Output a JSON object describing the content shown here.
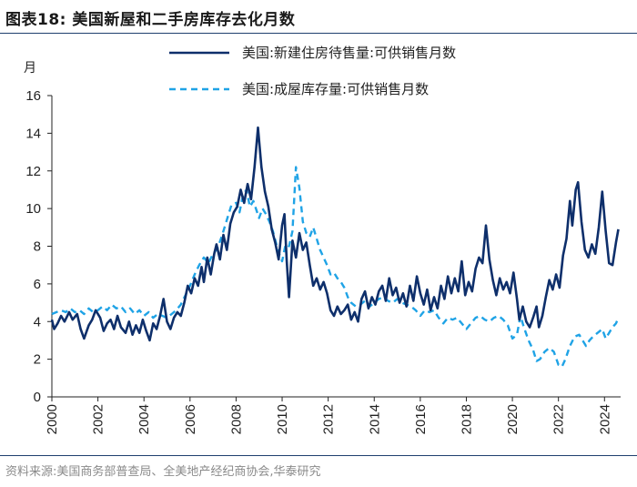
{
  "title": "图表18:   美国新屋和二手房库存去化月数",
  "source": "资料来源:美国商务部普查局、全美地产经纪商协会,华泰研究",
  "chart_data": {
    "type": "line",
    "ylabel": "月",
    "xlabel": "",
    "ylim": [
      0,
      16
    ],
    "xlim": [
      2000,
      2024.7
    ],
    "y_ticks": [
      "0",
      "2",
      "4",
      "6",
      "8",
      "10",
      "12",
      "14",
      "16"
    ],
    "x_ticks": [
      "2000",
      "2002",
      "2004",
      "2006",
      "2008",
      "2010",
      "2012",
      "2014",
      "2016",
      "2018",
      "2020",
      "2022",
      "2024"
    ],
    "series": [
      {
        "name": "美国:新建住房待售量:可供销售月数",
        "color": "#0e2f6b",
        "style": "solid",
        "points": [
          [
            2000,
            4.1
          ],
          [
            2000.1,
            3.6
          ],
          [
            2000.25,
            3.9
          ],
          [
            2000.4,
            4.3
          ],
          [
            2000.55,
            4.0
          ],
          [
            2000.75,
            4.5
          ],
          [
            2000.9,
            4.1
          ],
          [
            2001.1,
            4.4
          ],
          [
            2001.25,
            3.6
          ],
          [
            2001.4,
            3.1
          ],
          [
            2001.6,
            3.8
          ],
          [
            2001.75,
            4.1
          ],
          [
            2001.9,
            4.6
          ],
          [
            2002.1,
            4.2
          ],
          [
            2002.25,
            3.5
          ],
          [
            2002.4,
            3.9
          ],
          [
            2002.55,
            4.1
          ],
          [
            2002.7,
            3.6
          ],
          [
            2002.85,
            4.3
          ],
          [
            2003,
            3.7
          ],
          [
            2003.2,
            3.4
          ],
          [
            2003.35,
            4.0
          ],
          [
            2003.5,
            3.3
          ],
          [
            2003.65,
            3.8
          ],
          [
            2003.8,
            3.4
          ],
          [
            2003.95,
            4.1
          ],
          [
            2004.1,
            3.5
          ],
          [
            2004.25,
            3.0
          ],
          [
            2004.4,
            3.9
          ],
          [
            2004.55,
            3.6
          ],
          [
            2004.7,
            4.3
          ],
          [
            2004.85,
            5.2
          ],
          [
            2005,
            4.0
          ],
          [
            2005.15,
            3.6
          ],
          [
            2005.3,
            4.2
          ],
          [
            2005.45,
            4.5
          ],
          [
            2005.6,
            4.3
          ],
          [
            2005.75,
            5.0
          ],
          [
            2005.9,
            5.9
          ],
          [
            2006.05,
            5.5
          ],
          [
            2006.2,
            6.3
          ],
          [
            2006.35,
            5.9
          ],
          [
            2006.5,
            6.9
          ],
          [
            2006.6,
            6.1
          ],
          [
            2006.75,
            7.4
          ],
          [
            2006.9,
            6.5
          ],
          [
            2007.05,
            7.6
          ],
          [
            2007.15,
            8.1
          ],
          [
            2007.3,
            7.3
          ],
          [
            2007.45,
            8.6
          ],
          [
            2007.6,
            7.8
          ],
          [
            2007.75,
            9.2
          ],
          [
            2007.9,
            9.8
          ],
          [
            2008.05,
            10.1
          ],
          [
            2008.2,
            11.0
          ],
          [
            2008.35,
            10.3
          ],
          [
            2008.5,
            11.3
          ],
          [
            2008.65,
            10.5
          ],
          [
            2008.8,
            12.2
          ],
          [
            2008.95,
            14.3
          ],
          [
            2009.1,
            12.2
          ],
          [
            2009.25,
            10.9
          ],
          [
            2009.4,
            10.1
          ],
          [
            2009.55,
            8.9
          ],
          [
            2009.7,
            8.2
          ],
          [
            2009.85,
            7.3
          ],
          [
            2010,
            9.1
          ],
          [
            2010.1,
            9.7
          ],
          [
            2010.2,
            7.2
          ],
          [
            2010.3,
            5.3
          ],
          [
            2010.45,
            8.3
          ],
          [
            2010.6,
            7.4
          ],
          [
            2010.75,
            8.7
          ],
          [
            2010.9,
            7.8
          ],
          [
            2011.05,
            8.2
          ],
          [
            2011.2,
            7.0
          ],
          [
            2011.35,
            5.9
          ],
          [
            2011.5,
            6.3
          ],
          [
            2011.65,
            5.7
          ],
          [
            2011.8,
            6.1
          ],
          [
            2011.95,
            5.5
          ],
          [
            2012.1,
            4.6
          ],
          [
            2012.25,
            4.3
          ],
          [
            2012.4,
            4.8
          ],
          [
            2012.55,
            4.4
          ],
          [
            2012.7,
            4.6
          ],
          [
            2012.85,
            4.9
          ],
          [
            2013,
            4.1
          ],
          [
            2013.15,
            4.5
          ],
          [
            2013.3,
            4.0
          ],
          [
            2013.45,
            5.2
          ],
          [
            2013.6,
            5.6
          ],
          [
            2013.75,
            4.7
          ],
          [
            2013.9,
            5.3
          ],
          [
            2014.05,
            4.9
          ],
          [
            2014.2,
            5.6
          ],
          [
            2014.35,
            5.9
          ],
          [
            2014.5,
            5.1
          ],
          [
            2014.65,
            6.3
          ],
          [
            2014.8,
            5.4
          ],
          [
            2014.95,
            5.8
          ],
          [
            2015.1,
            5.0
          ],
          [
            2015.25,
            5.5
          ],
          [
            2015.4,
            4.8
          ],
          [
            2015.55,
            5.9
          ],
          [
            2015.7,
            5.1
          ],
          [
            2015.85,
            6.4
          ],
          [
            2016,
            5.5
          ],
          [
            2016.15,
            4.9
          ],
          [
            2016.3,
            5.7
          ],
          [
            2016.45,
            4.6
          ],
          [
            2016.6,
            5.3
          ],
          [
            2016.75,
            4.7
          ],
          [
            2016.9,
            5.9
          ],
          [
            2017.05,
            5.2
          ],
          [
            2017.2,
            6.4
          ],
          [
            2017.35,
            5.5
          ],
          [
            2017.5,
            6.3
          ],
          [
            2017.65,
            5.6
          ],
          [
            2017.8,
            7.2
          ],
          [
            2017.95,
            5.4
          ],
          [
            2018.1,
            6.1
          ],
          [
            2018.25,
            5.6
          ],
          [
            2018.4,
            6.8
          ],
          [
            2018.55,
            7.4
          ],
          [
            2018.7,
            7.1
          ],
          [
            2018.85,
            9.1
          ],
          [
            2019,
            7.3
          ],
          [
            2019.15,
            6.2
          ],
          [
            2019.3,
            5.4
          ],
          [
            2019.45,
            6.3
          ],
          [
            2019.6,
            5.7
          ],
          [
            2019.75,
            6.1
          ],
          [
            2019.9,
            5.5
          ],
          [
            2020.05,
            6.6
          ],
          [
            2020.2,
            5.2
          ],
          [
            2020.3,
            4.1
          ],
          [
            2020.45,
            4.8
          ],
          [
            2020.6,
            4.0
          ],
          [
            2020.75,
            3.7
          ],
          [
            2020.9,
            4.2
          ],
          [
            2021.05,
            4.8
          ],
          [
            2021.15,
            3.7
          ],
          [
            2021.3,
            4.3
          ],
          [
            2021.45,
            5.3
          ],
          [
            2021.6,
            6.2
          ],
          [
            2021.75,
            5.7
          ],
          [
            2021.9,
            6.5
          ],
          [
            2022.05,
            5.8
          ],
          [
            2022.2,
            7.5
          ],
          [
            2022.35,
            8.4
          ],
          [
            2022.5,
            10.4
          ],
          [
            2022.6,
            9.1
          ],
          [
            2022.75,
            11.0
          ],
          [
            2022.85,
            11.4
          ],
          [
            2023,
            9.3
          ],
          [
            2023.15,
            7.8
          ],
          [
            2023.3,
            7.4
          ],
          [
            2023.45,
            8.1
          ],
          [
            2023.6,
            7.6
          ],
          [
            2023.75,
            9.0
          ],
          [
            2023.9,
            10.9
          ],
          [
            2024.05,
            8.8
          ],
          [
            2024.2,
            7.1
          ],
          [
            2024.35,
            7.0
          ],
          [
            2024.5,
            8.2
          ],
          [
            2024.6,
            8.9
          ]
        ]
      },
      {
        "name": "美国:成屋库存量:可供销售月数",
        "color": "#1fa3e6",
        "style": "dashed",
        "points": [
          [
            2000,
            4.4
          ],
          [
            2000.2,
            4.5
          ],
          [
            2000.4,
            4.6
          ],
          [
            2000.6,
            4.5
          ],
          [
            2000.8,
            4.7
          ],
          [
            2001,
            4.5
          ],
          [
            2001.2,
            4.6
          ],
          [
            2001.4,
            4.4
          ],
          [
            2001.6,
            4.7
          ],
          [
            2001.8,
            4.5
          ],
          [
            2002,
            4.6
          ],
          [
            2002.2,
            4.8
          ],
          [
            2002.4,
            4.6
          ],
          [
            2002.6,
            4.9
          ],
          [
            2002.8,
            4.7
          ],
          [
            2003,
            4.8
          ],
          [
            2003.2,
            4.5
          ],
          [
            2003.4,
            4.7
          ],
          [
            2003.6,
            4.4
          ],
          [
            2003.8,
            4.6
          ],
          [
            2004,
            4.3
          ],
          [
            2004.2,
            4.5
          ],
          [
            2004.4,
            4.2
          ],
          [
            2004.6,
            4.4
          ],
          [
            2004.8,
            4.3
          ],
          [
            2005,
            4.2
          ],
          [
            2005.2,
            4.4
          ],
          [
            2005.4,
            4.6
          ],
          [
            2005.6,
            4.9
          ],
          [
            2005.8,
            5.4
          ],
          [
            2006,
            5.9
          ],
          [
            2006.2,
            6.5
          ],
          [
            2006.4,
            7.0
          ],
          [
            2006.6,
            7.4
          ],
          [
            2006.8,
            7.1
          ],
          [
            2007,
            7.6
          ],
          [
            2007.2,
            7.9
          ],
          [
            2007.4,
            8.6
          ],
          [
            2007.6,
            9.4
          ],
          [
            2007.8,
            10.2
          ],
          [
            2008,
            10.3
          ],
          [
            2008.15,
            9.8
          ],
          [
            2008.3,
            10.7
          ],
          [
            2008.45,
            11.0
          ],
          [
            2008.6,
            10.1
          ],
          [
            2008.75,
            10.4
          ],
          [
            2009,
            9.5
          ],
          [
            2009.15,
            10.0
          ],
          [
            2009.3,
            9.7
          ],
          [
            2009.45,
            9.3
          ],
          [
            2009.6,
            8.8
          ],
          [
            2009.75,
            8.1
          ],
          [
            2009.9,
            7.5
          ],
          [
            2010,
            7.2
          ],
          [
            2010.15,
            8.1
          ],
          [
            2010.3,
            8.0
          ],
          [
            2010.45,
            8.8
          ],
          [
            2010.6,
            12.2
          ],
          [
            2010.75,
            11.1
          ],
          [
            2010.9,
            9.3
          ],
          [
            2011.05,
            8.7
          ],
          [
            2011.2,
            8.5
          ],
          [
            2011.35,
            9.0
          ],
          [
            2011.5,
            8.4
          ],
          [
            2011.65,
            7.8
          ],
          [
            2011.8,
            7.4
          ],
          [
            2011.95,
            7.0
          ],
          [
            2012.1,
            6.5
          ],
          [
            2012.25,
            6.6
          ],
          [
            2012.4,
            6.3
          ],
          [
            2012.55,
            6.1
          ],
          [
            2012.7,
            5.8
          ],
          [
            2012.85,
            5.3
          ],
          [
            2013,
            5.0
          ],
          [
            2013.2,
            4.8
          ],
          [
            2013.4,
            4.9
          ],
          [
            2013.6,
            5.1
          ],
          [
            2013.8,
            4.8
          ],
          [
            2014,
            5.0
          ],
          [
            2014.2,
            5.2
          ],
          [
            2014.4,
            5.3
          ],
          [
            2014.6,
            5.1
          ],
          [
            2014.8,
            5.0
          ],
          [
            2015,
            5.2
          ],
          [
            2015.2,
            5.0
          ],
          [
            2015.4,
            4.9
          ],
          [
            2015.6,
            4.8
          ],
          [
            2015.8,
            4.6
          ],
          [
            2016,
            4.3
          ],
          [
            2016.2,
            4.6
          ],
          [
            2016.4,
            4.5
          ],
          [
            2016.6,
            4.6
          ],
          [
            2016.8,
            4.2
          ],
          [
            2017,
            3.9
          ],
          [
            2017.2,
            4.2
          ],
          [
            2017.4,
            4.1
          ],
          [
            2017.6,
            4.2
          ],
          [
            2017.8,
            3.9
          ],
          [
            2018,
            3.6
          ],
          [
            2018.2,
            3.9
          ],
          [
            2018.4,
            4.2
          ],
          [
            2018.6,
            4.3
          ],
          [
            2018.8,
            4.1
          ],
          [
            2019,
            4.0
          ],
          [
            2019.2,
            4.2
          ],
          [
            2019.4,
            4.3
          ],
          [
            2019.6,
            4.1
          ],
          [
            2019.8,
            3.8
          ],
          [
            2020,
            3.1
          ],
          [
            2020.2,
            3.3
          ],
          [
            2020.35,
            4.3
          ],
          [
            2020.5,
            3.7
          ],
          [
            2020.7,
            3.0
          ],
          [
            2020.9,
            2.5
          ],
          [
            2021.05,
            1.9
          ],
          [
            2021.2,
            2.0
          ],
          [
            2021.4,
            2.4
          ],
          [
            2021.6,
            2.6
          ],
          [
            2021.8,
            2.4
          ],
          [
            2022,
            1.7
          ],
          [
            2022.15,
            1.6
          ],
          [
            2022.3,
            2.0
          ],
          [
            2022.5,
            2.7
          ],
          [
            2022.7,
            3.2
          ],
          [
            2022.9,
            3.3
          ],
          [
            2023.05,
            3.0
          ],
          [
            2023.2,
            2.7
          ],
          [
            2023.35,
            3.0
          ],
          [
            2023.5,
            3.2
          ],
          [
            2023.7,
            3.4
          ],
          [
            2023.9,
            3.6
          ],
          [
            2024.05,
            3.1
          ],
          [
            2024.2,
            3.4
          ],
          [
            2024.35,
            3.7
          ],
          [
            2024.5,
            3.9
          ],
          [
            2024.6,
            4.2
          ]
        ]
      }
    ]
  }
}
